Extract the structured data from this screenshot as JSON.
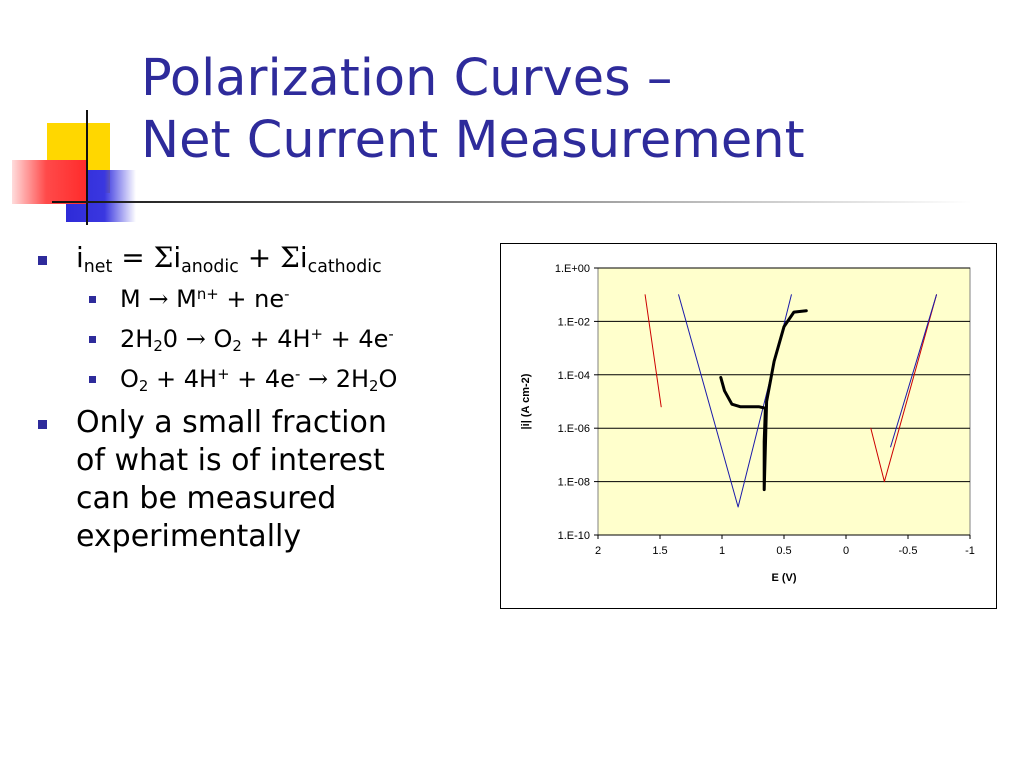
{
  "slide": {
    "title_line1": "Polarization Curves –",
    "title_line2": "Net Current Measurement"
  },
  "bullets": {
    "equation": {
      "i": "i",
      "net_sub": "net",
      "eq": "=",
      "sigma": "Σ",
      "anodic_sub": "anodic",
      "plus": "+",
      "cathodic_sub": "cathodic"
    },
    "reaction1": {
      "left": "M",
      "arrow": "→",
      "product": "M",
      "product_sup": "n+",
      "rest": "+ ne",
      "rest_sup": "-"
    },
    "reaction2": {
      "pre": "2H",
      "sub1": "2",
      "mid": "0",
      "arrow": "→",
      "o": "O",
      "sub2": "2",
      "plus_h": "+ 4H",
      "sup_h": "+",
      "plus_e": "+ 4e",
      "sup_e": "-"
    },
    "reaction3": {
      "o": "O",
      "sub1": "2",
      "plus_h": "+ 4H",
      "sup_h": "+",
      "plus_e": "+ 4e",
      "sup_e": "-",
      "arrow": "→",
      "right": "2H",
      "sub2": "2",
      "tail": "O"
    },
    "note_lines": [
      "Only a small fraction",
      "of what is of interest",
      "can be measured",
      "experimentally"
    ]
  },
  "chart_data": {
    "type": "line",
    "xlabel": "E (V)",
    "ylabel": "|i| (A cm-2)",
    "x_ticks": [
      "2",
      "1.5",
      "1",
      "0.5",
      "0",
      "-0.5",
      "-1"
    ],
    "y_ticks": [
      "1.E+00",
      "1.E-02",
      "1.E-04",
      "1.E-06",
      "1.E-08",
      "1.E-10"
    ],
    "xlim": [
      2,
      -1
    ],
    "ylim_log10": [
      -10,
      0
    ],
    "x_reversed": true,
    "y_scale": "log",
    "grid": "horizontal",
    "plot_background": "#ffffcc",
    "series": [
      {
        "color": "#cc0000",
        "width": 1,
        "points": [
          [
            1.62,
            -1.0
          ],
          [
            1.49,
            -5.2
          ]
        ]
      },
      {
        "color": "#1a1aaa",
        "width": 1,
        "points": [
          [
            1.35,
            -1.0
          ],
          [
            0.87,
            -8.95
          ],
          [
            0.44,
            -1.0
          ]
        ]
      },
      {
        "color": "#000000",
        "width": 3,
        "points": [
          [
            1.01,
            -4.1
          ],
          [
            0.98,
            -4.6
          ],
          [
            0.92,
            -5.1
          ],
          [
            0.85,
            -5.2
          ],
          [
            0.7,
            -5.2
          ],
          [
            0.65,
            -5.25
          ],
          [
            0.66,
            -6.5
          ],
          [
            0.66,
            -8.3
          ],
          [
            0.64,
            -5.0
          ],
          [
            0.58,
            -3.5
          ],
          [
            0.5,
            -2.2
          ],
          [
            0.42,
            -1.65
          ],
          [
            0.32,
            -1.6
          ]
        ]
      },
      {
        "color": "#cc0000",
        "width": 1,
        "points": [
          [
            -0.2,
            -6.0
          ],
          [
            -0.31,
            -8.0
          ],
          [
            -0.73,
            -1.0
          ]
        ]
      },
      {
        "color": "#1a1aaa",
        "width": 1,
        "points": [
          [
            -0.36,
            -6.7
          ],
          [
            -0.73,
            -1.0
          ]
        ]
      }
    ]
  }
}
